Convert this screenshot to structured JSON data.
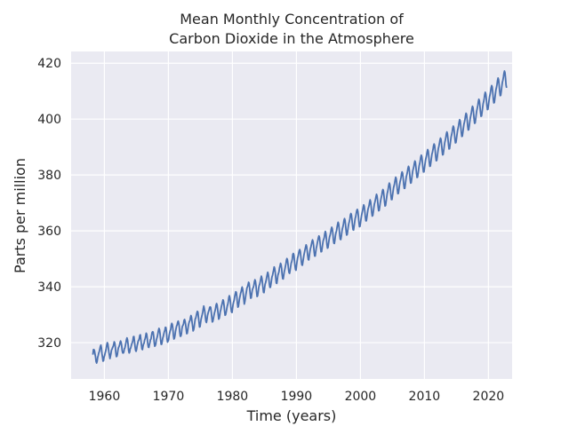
{
  "chart_data": {
    "type": "line",
    "title": [
      "Mean Monthly Concentration of",
      "Carbon Dioxide in the Atmosphere"
    ],
    "xlabel": "Time (years)",
    "ylabel": "Parts per million",
    "xlim": [
      1954.8,
      2023.7
    ],
    "ylim": [
      307.0,
      424.2
    ],
    "xticks": [
      1960,
      1970,
      1980,
      1990,
      2000,
      2010,
      2020
    ],
    "yticks": [
      320,
      340,
      360,
      380,
      400,
      420
    ],
    "grid": true,
    "legend": "none",
    "colors": {
      "background": "#eaeaf2",
      "grid": "#ffffff",
      "line": "#4c72b0",
      "text": "#262626"
    },
    "series": [
      {
        "x_start": 1958.2,
        "x_step": 0.0833,
        "values": [
          315.7,
          317.5,
          317.5,
          317.1,
          315.9,
          314.9,
          313.2,
          312.7,
          313.3,
          314.7,
          315.4,
          316.3,
          316.8,
          317.7,
          318.6,
          319.1,
          318.1,
          316.1,
          314.8,
          313.4,
          313.5,
          314.9,
          315.4,
          316.3,
          317.0,
          317.9,
          319.1,
          320.0,
          319.6,
          318.1,
          316.6,
          315.5,
          314.3,
          315.2,
          316.2,
          317.4,
          317.7,
          318.3,
          318.6,
          319.3,
          320.3,
          319.9,
          318.6,
          316.5,
          315.0,
          315.1,
          315.9,
          317.3,
          318.2,
          318.6,
          319.1,
          320.1,
          320.6,
          320.1,
          318.9,
          317.1,
          316.3,
          316.3,
          316.6,
          317.8,
          318.1,
          319.0,
          320.0,
          321.1,
          321.7,
          321.0,
          319.5,
          317.2,
          316.3,
          316.6,
          317.8,
          318.1,
          318.9,
          319.6,
          320.1,
          320.8,
          322.1,
          322.2,
          320.5,
          318.8,
          317.3,
          316.9,
          317.6,
          318.9,
          319.7,
          320.6,
          320.9,
          321.5,
          322.6,
          322.8,
          321.1,
          319.3,
          317.7,
          317.5,
          318.7,
          319.5,
          319.8,
          320.9,
          321.4,
          322.3,
          323.4,
          323.0,
          321.5,
          319.6,
          318.4,
          318.3,
          319.3,
          320.0,
          321.1,
          321.3,
          322.5,
          323.6,
          323.9,
          323.8,
          322.4,
          320.1,
          318.7,
          318.9,
          319.5,
          321.0,
          321.6,
          322.3,
          323.3,
          324.4,
          325.1,
          324.6,
          323.2,
          321.1,
          319.4,
          319.4,
          320.4,
          321.6,
          322.2,
          323.1,
          323.9,
          324.4,
          325.5,
          325.4,
          323.9,
          321.4,
          320.2,
          320.6,
          321.0,
          322.6,
          323.5,
          324.3,
          324.7,
          326.3,
          326.9,
          326.5,
          325.1,
          322.6,
          321.3,
          321.6,
          322.6,
          324.1,
          325.0,
          326.0,
          326.3,
          327.3,
          327.7,
          327.1,
          325.8,
          323.6,
          322.3,
          322.3,
          323.1,
          324.9,
          325.9,
          326.2,
          326.7,
          328.0,
          328.3,
          327.6,
          326.4,
          324.8,
          323.2,
          323.3,
          324.6,
          326.0,
          326.9,
          327.6,
          327.8,
          329.0,
          329.7,
          329.1,
          327.4,
          325.9,
          324.2,
          324.6,
          325.6,
          327.2,
          328.5,
          328.8,
          329.7,
          330.6,
          331.2,
          330.9,
          329.2,
          327.4,
          325.6,
          325.7,
          327.1,
          328.4,
          329.2,
          330.0,
          330.9,
          332.1,
          333.1,
          332.2,
          331.0,
          329.2,
          327.6,
          327.2,
          328.3,
          329.7,
          330.5,
          331.2,
          331.7,
          332.6,
          332.8,
          332.6,
          331.0,
          329.2,
          327.4,
          327.6,
          328.6,
          329.6,
          330.6,
          331.3,
          332.1,
          333.4,
          334.0,
          333.5,
          331.9,
          330.2,
          328.4,
          328.7,
          329.8,
          331.2,
          331.8,
          332.9,
          333.6,
          334.5,
          335.3,
          334.9,
          333.4,
          331.3,
          329.8,
          330.0,
          330.9,
          332.0,
          333.1,
          333.7,
          334.7,
          336.2,
          336.8,
          336.0,
          334.6,
          332.3,
          331.0,
          330.8,
          332.3,
          333.7,
          334.6,
          335.2,
          336.5,
          337.4,
          338.2,
          338.0,
          336.5,
          334.2,
          332.7,
          333.0,
          334.4,
          335.7,
          336.6,
          337.6,
          338.2,
          339.2,
          339.9,
          339.1,
          337.5,
          335.6,
          333.8,
          334.6,
          335.8,
          337.2,
          338.3,
          339.6,
          340.0,
          340.7,
          341.6,
          341.3,
          339.6,
          337.6,
          335.9,
          336.0,
          337.5,
          338.8,
          339.4,
          339.8,
          340.5,
          341.8,
          342.5,
          341.9,
          340.4,
          338.1,
          336.5,
          336.8,
          338.0,
          339.6,
          340.5,
          341.0,
          341.9,
          342.9,
          343.8,
          343.1,
          341.5,
          339.6,
          338.0,
          337.9,
          339.4,
          340.9,
          341.5,
          342.3,
          343.4,
          344.4,
          345.2,
          344.4,
          343.0,
          341.1,
          339.8,
          339.8,
          341.0,
          342.3,
          343.6,
          344.1,
          345.1,
          346.0,
          347.1,
          346.6,
          345.2,
          343.2,
          341.3,
          341.2,
          342.6,
          344.1,
          344.7,
          345.4,
          346.7,
          347.5,
          348.4,
          347.9,
          346.6,
          344.4,
          342.9,
          342.8,
          344.1,
          345.4,
          346.2,
          347.2,
          348.1,
          349.5,
          350.1,
          349.6,
          348.1,
          346.2,
          345.0,
          344.8,
          346.0,
          347.3,
          348.5,
          349.0,
          349.9,
          351.6,
          351.9,
          351.4,
          349.6,
          347.6,
          346.2,
          345.9,
          347.6,
          349.1,
          350.4,
          351.0,
          352.0,
          352.9,
          353.3,
          352.7,
          350.9,
          349.1,
          347.8,
          347.7,
          349.0,
          350.2,
          351.5,
          352.4,
          353.4,
          354.2,
          355.0,
          354.4,
          352.8,
          351.1,
          349.7,
          349.6,
          351.1,
          352.5,
          353.6,
          354.3,
          355.2,
          356.2,
          356.8,
          356.2,
          354.7,
          352.5,
          351.0,
          351.0,
          352.4,
          353.8,
          354.6,
          355.7,
          356.6,
          357.6,
          358.2,
          357.7,
          356.0,
          353.9,
          352.5,
          352.6,
          353.8,
          355.3,
          356.5,
          357.0,
          357.6,
          359.0,
          359.8,
          359.1,
          357.3,
          355.1,
          353.8,
          354.0,
          355.4,
          356.8,
          357.9,
          358.5,
          359.4,
          360.6,
          361.3,
          360.8,
          359.4,
          357.0,
          355.6,
          355.5,
          356.8,
          358.4,
          359.4,
          360.0,
          361.3,
          362.3,
          363.1,
          362.5,
          360.7,
          358.5,
          357.0,
          356.9,
          358.1,
          359.6,
          360.8,
          361.5,
          362.5,
          363.8,
          364.4,
          363.8,
          361.9,
          359.9,
          358.5,
          358.7,
          360.1,
          361.5,
          362.6,
          363.3,
          364.2,
          365.7,
          366.2,
          365.7,
          364.0,
          361.9,
          360.4,
          360.3,
          361.7,
          363.1,
          364.5,
          365.1,
          366.3,
          367.3,
          367.7,
          367.0,
          365.3,
          363.1,
          361.5,
          361.6,
          362.9,
          364.3,
          365.6,
          366.5,
          367.4,
          368.5,
          369.3,
          368.8,
          367.1,
          365.0,
          363.6,
          363.6,
          365.0,
          366.4,
          367.7,
          368.4,
          369.1,
          370.3,
          371.1,
          370.4,
          368.6,
          366.6,
          365.3,
          365.5,
          366.8,
          368.3,
          369.6,
          370.3,
          371.2,
          372.2,
          373.1,
          372.5,
          370.9,
          368.7,
          367.2,
          367.3,
          368.6,
          370.0,
          371.1,
          372.0,
          372.9,
          374.2,
          374.8,
          374.3,
          372.5,
          370.4,
          368.9,
          369.1,
          370.5,
          371.9,
          373.3,
          374.1,
          375.1,
          376.4,
          377.1,
          376.6,
          374.9,
          372.7,
          371.2,
          371.2,
          372.6,
          374.1,
          375.5,
          376.2,
          377.1,
          378.3,
          379.2,
          378.7,
          376.9,
          374.8,
          373.3,
          373.4,
          374.7,
          376.2,
          377.4,
          378.2,
          379.1,
          380.5,
          381.1,
          380.6,
          378.8,
          376.7,
          375.2,
          375.2,
          376.6,
          378.1,
          379.5,
          380.2,
          381.2,
          382.4,
          383.1,
          382.6,
          380.8,
          378.6,
          377.1,
          377.2,
          378.6,
          380.1,
          381.5,
          382.2,
          383.0,
          384.2,
          385.0,
          384.5,
          382.7,
          380.6,
          379.1,
          379.2,
          380.5,
          382.0,
          383.3,
          384.1,
          385.1,
          386.4,
          387.1,
          386.5,
          384.7,
          382.6,
          381.1,
          381.1,
          382.5,
          384.0,
          385.4,
          386.2,
          387.1,
          388.3,
          389.1,
          388.6,
          386.8,
          384.6,
          383.1,
          383.2,
          384.6,
          386.1,
          387.5,
          388.2,
          389.2,
          390.5,
          391.1,
          390.6,
          388.8,
          386.6,
          385.1,
          385.2,
          386.6,
          388.1,
          389.5,
          390.3,
          391.3,
          392.5,
          393.2,
          392.7,
          390.9,
          388.8,
          387.2,
          387.3,
          388.7,
          390.2,
          391.6,
          392.4,
          393.4,
          394.7,
          395.4,
          394.8,
          393.0,
          390.9,
          389.3,
          389.4,
          390.8,
          392.3,
          393.7,
          394.5,
          395.5,
          396.8,
          397.5,
          397.0,
          395.2,
          393.0,
          391.5,
          391.6,
          393.0,
          394.5,
          395.9,
          396.7,
          397.7,
          399.0,
          399.8,
          399.3,
          397.5,
          395.3,
          393.8,
          393.9,
          395.3,
          396.8,
          398.2,
          399.0,
          400.0,
          401.3,
          402.1,
          401.6,
          399.8,
          397.6,
          396.1,
          396.2,
          397.6,
          399.1,
          400.5,
          401.4,
          402.4,
          403.8,
          404.6,
          404.1,
          402.2,
          400.0,
          398.5,
          398.6,
          400.0,
          401.6,
          403.0,
          403.9,
          404.9,
          406.3,
          407.1,
          406.5,
          404.7,
          402.5,
          401.0,
          401.1,
          402.5,
          404.1,
          405.5,
          406.3,
          407.4,
          408.8,
          409.6,
          409.0,
          407.2,
          404.9,
          403.4,
          403.5,
          405.0,
          406.6,
          408.0,
          408.8,
          409.9,
          411.2,
          412.0,
          411.5,
          409.6,
          407.3,
          405.8,
          405.9,
          407.4,
          409.0,
          410.5,
          411.3,
          412.4,
          413.8,
          414.7,
          414.1,
          412.2,
          409.9,
          408.4,
          408.5,
          410.0,
          411.6,
          413.1,
          413.9,
          415.0,
          416.4,
          417.2,
          416.6,
          414.6,
          412.2,
          411.2
        ]
      }
    ]
  }
}
